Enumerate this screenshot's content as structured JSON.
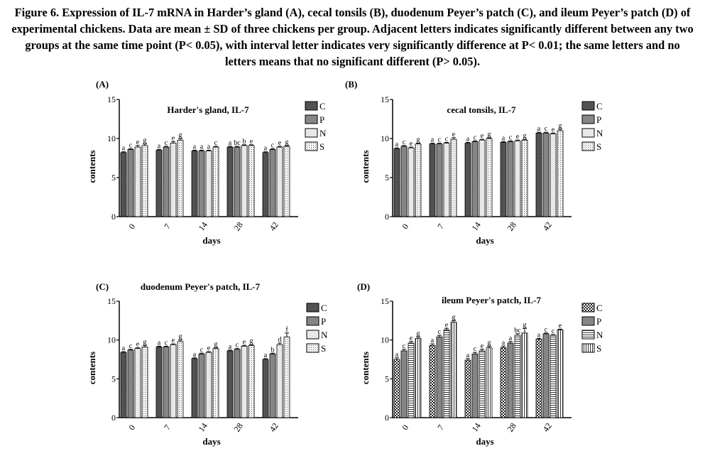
{
  "caption": "Figure 6. Expression of IL-7 mRNA in Harder’s gland (A), cecal tonsils (B), duodenum Peyer’s patch (C), and ileum Peyer’s patch (D) of experimental chickens. Data are mean ± SD of three chickens per group. Adjacent letters indicates significantly different between any two groups at the same time point (P< 0.05), with interval letter indicates very significantly difference at P< 0.01; the same letters and no letters means that no significant different (P> 0.05).",
  "colors": {
    "C": "#555555",
    "P": "#9a9a9a",
    "N": "#e6e6e6",
    "S": "#f2f2f2",
    "axis": "#000000"
  },
  "chart_data": [
    {
      "panel": "(A)",
      "title": "Harder's gland, IL-7",
      "type": "bar",
      "xlabel": "days",
      "ylabel": "contents",
      "ylim": [
        0,
        15
      ],
      "yticks": [
        0,
        5,
        10,
        15
      ],
      "categories": [
        "0",
        "7",
        "14",
        "28",
        "42"
      ],
      "series": [
        {
          "name": "C",
          "pattern": "dark",
          "values": [
            8.2,
            8.5,
            8.4,
            8.9,
            8.2
          ],
          "errors": [
            0.1,
            0.1,
            0.1,
            0.1,
            0.1
          ],
          "letters": [
            "a",
            "a",
            "a",
            "a",
            "a"
          ]
        },
        {
          "name": "P",
          "pattern": "check",
          "values": [
            8.6,
            8.9,
            8.4,
            8.9,
            8.6
          ],
          "errors": [
            0.1,
            0.1,
            0.1,
            0.1,
            0.1
          ],
          "letters": [
            "c",
            "c",
            "a",
            "bc",
            "c"
          ]
        },
        {
          "name": "N",
          "pattern": "light",
          "values": [
            8.9,
            9.4,
            8.4,
            9.1,
            8.9
          ],
          "errors": [
            0.2,
            0.2,
            0.1,
            0.1,
            0.1
          ],
          "letters": [
            "e",
            "e",
            "a",
            "b",
            "e"
          ]
        },
        {
          "name": "S",
          "pattern": "dotted",
          "values": [
            9.1,
            9.8,
            8.9,
            9.1,
            9.0
          ],
          "errors": [
            0.2,
            0.2,
            0.1,
            0.1,
            0.1
          ],
          "letters": [
            "g",
            "g",
            "c",
            "e",
            "g"
          ]
        }
      ]
    },
    {
      "panel": "(B)",
      "title": "cecal tonsils, IL-7",
      "type": "bar",
      "xlabel": "days",
      "ylabel": "contents",
      "ylim": [
        0,
        15
      ],
      "yticks": [
        0,
        5,
        10,
        15
      ],
      "categories": [
        "0",
        "7",
        "14",
        "28",
        "42"
      ],
      "series": [
        {
          "name": "C",
          "pattern": "dark",
          "values": [
            8.7,
            9.3,
            9.4,
            9.5,
            10.7
          ],
          "errors": [
            0.1,
            0.1,
            0.1,
            0.1,
            0.1
          ],
          "letters": [
            "a",
            "a",
            "a",
            "a",
            "a"
          ]
        },
        {
          "name": "P",
          "pattern": "check",
          "values": [
            9.0,
            9.3,
            9.6,
            9.6,
            10.7
          ],
          "errors": [
            0.1,
            0.1,
            0.1,
            0.1,
            0.1
          ],
          "letters": [
            "c",
            "c",
            "c",
            "c",
            "c"
          ]
        },
        {
          "name": "N",
          "pattern": "light",
          "values": [
            8.8,
            9.4,
            9.8,
            9.7,
            10.6
          ],
          "errors": [
            0.1,
            0.1,
            0.1,
            0.1,
            0.1
          ],
          "letters": [
            "e",
            "c",
            "e",
            "e",
            "e"
          ]
        },
        {
          "name": "S",
          "pattern": "dotted",
          "values": [
            9.3,
            9.9,
            10.0,
            9.8,
            11.0
          ],
          "errors": [
            0.1,
            0.2,
            0.1,
            0.1,
            0.2
          ],
          "letters": [
            "g",
            "e",
            "g",
            "g",
            "g"
          ]
        }
      ]
    },
    {
      "panel": "(C)",
      "title": "duodenum Peyer's patch, IL-7",
      "type": "bar",
      "xlabel": "days",
      "ylabel": "contents",
      "ylim": [
        0,
        15
      ],
      "yticks": [
        0,
        5,
        10,
        15
      ],
      "categories": [
        "0",
        "7",
        "14",
        "28",
        "42"
      ],
      "series": [
        {
          "name": "C",
          "pattern": "dark",
          "values": [
            8.4,
            9.1,
            7.6,
            8.6,
            7.5
          ],
          "errors": [
            0.1,
            0.1,
            0.1,
            0.1,
            0.1
          ],
          "letters": [
            "a",
            "a",
            "a",
            "a",
            "a"
          ]
        },
        {
          "name": "P",
          "pattern": "check",
          "values": [
            8.7,
            9.1,
            8.2,
            8.8,
            8.2
          ],
          "errors": [
            0.1,
            0.1,
            0.1,
            0.1,
            0.1
          ],
          "letters": [
            "c",
            "c",
            "c",
            "c",
            "b"
          ]
        },
        {
          "name": "N",
          "pattern": "light",
          "values": [
            8.9,
            9.4,
            8.4,
            9.2,
            9.4
          ],
          "errors": [
            0.1,
            0.1,
            0.1,
            0.1,
            0.2
          ],
          "letters": [
            "e",
            "e",
            "e",
            "e",
            "d"
          ]
        },
        {
          "name": "S",
          "pattern": "dotted",
          "values": [
            9.1,
            9.8,
            8.9,
            9.3,
            10.4
          ],
          "errors": [
            0.2,
            0.2,
            0.1,
            0.1,
            0.5
          ],
          "letters": [
            "g",
            "g",
            "g",
            "g",
            "f"
          ]
        }
      ]
    },
    {
      "panel": "(D)",
      "title": "ileum Peyer's patch, IL-7",
      "type": "bar",
      "xlabel": "days",
      "ylabel": "contents",
      "ylim": [
        0,
        15
      ],
      "yticks": [
        0,
        5,
        10,
        15
      ],
      "categories": [
        "0",
        "7",
        "14",
        "28",
        "42"
      ],
      "series": [
        {
          "name": "C",
          "pattern": "check2",
          "values": [
            7.5,
            9.3,
            7.4,
            9.0,
            10.1
          ],
          "errors": [
            0.2,
            0.2,
            0.2,
            0.2,
            0.1
          ],
          "letters": [
            "a",
            "a",
            "a",
            "a",
            "a"
          ]
        },
        {
          "name": "P",
          "pattern": "check",
          "values": [
            8.6,
            10.4,
            8.2,
            9.6,
            10.8
          ],
          "errors": [
            0.2,
            0.2,
            0.2,
            0.2,
            0.1
          ],
          "letters": [
            "c",
            "c",
            "c",
            "a",
            "c"
          ]
        },
        {
          "name": "N",
          "pattern": "hstripe",
          "values": [
            9.6,
            11.3,
            8.6,
            10.6,
            10.6
          ],
          "errors": [
            0.2,
            0.2,
            0.2,
            0.2,
            0.1
          ],
          "letters": [
            "e",
            "e",
            "e",
            "bc",
            "c"
          ]
        },
        {
          "name": "S",
          "pattern": "vstripe",
          "values": [
            10.2,
            12.3,
            9.0,
            10.9,
            11.3
          ],
          "errors": [
            0.2,
            0.2,
            0.2,
            0.6,
            0.1
          ],
          "letters": [
            "g",
            "g",
            "g",
            "g",
            "e"
          ]
        }
      ]
    }
  ]
}
